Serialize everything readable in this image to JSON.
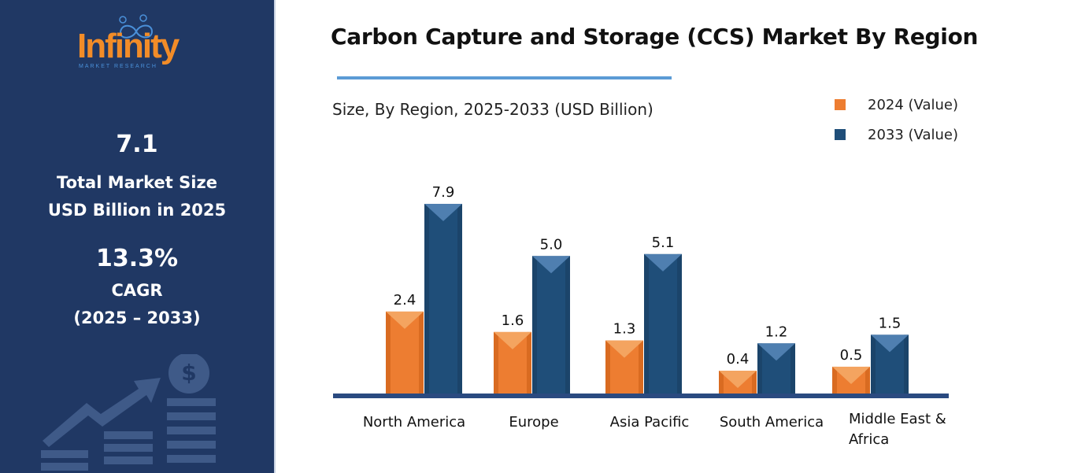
{
  "logo": {
    "word": "Infinity",
    "sub": "MARKET RESEARCH"
  },
  "sidebar": {
    "market_size": "7.1",
    "market_size_label_1": "Total Market Size",
    "market_size_label_2": "USD Billion in 2025",
    "cagr": "13.3%",
    "cagr_label": "CAGR",
    "cagr_period": "(2025 – 2033)",
    "icon": "dollar-growth-icon"
  },
  "colors": {
    "panel": "#203864",
    "series_2024": "#ed7d31",
    "series_2033": "#1f4e79",
    "axis": "#2a4a80",
    "accent": "#5b9bd5"
  },
  "chart_data": {
    "type": "bar",
    "title": "Carbon Capture and Storage (CCS) Market By Region",
    "subtitle": "Size, By Region, 2025-2033 (USD Billion)",
    "categories": [
      "North America",
      "Europe",
      "Asia Pacific",
      "South America",
      "Middle East & Africa"
    ],
    "series": [
      {
        "name": "2024 (Value)",
        "values": [
          2.4,
          1.6,
          1.3,
          0.4,
          0.5
        ]
      },
      {
        "name": "2033 (Value)",
        "values": [
          7.9,
          5.0,
          5.1,
          1.2,
          1.5
        ]
      }
    ],
    "legend": "top-right",
    "grid": false,
    "xlabel": "",
    "ylabel": ""
  }
}
